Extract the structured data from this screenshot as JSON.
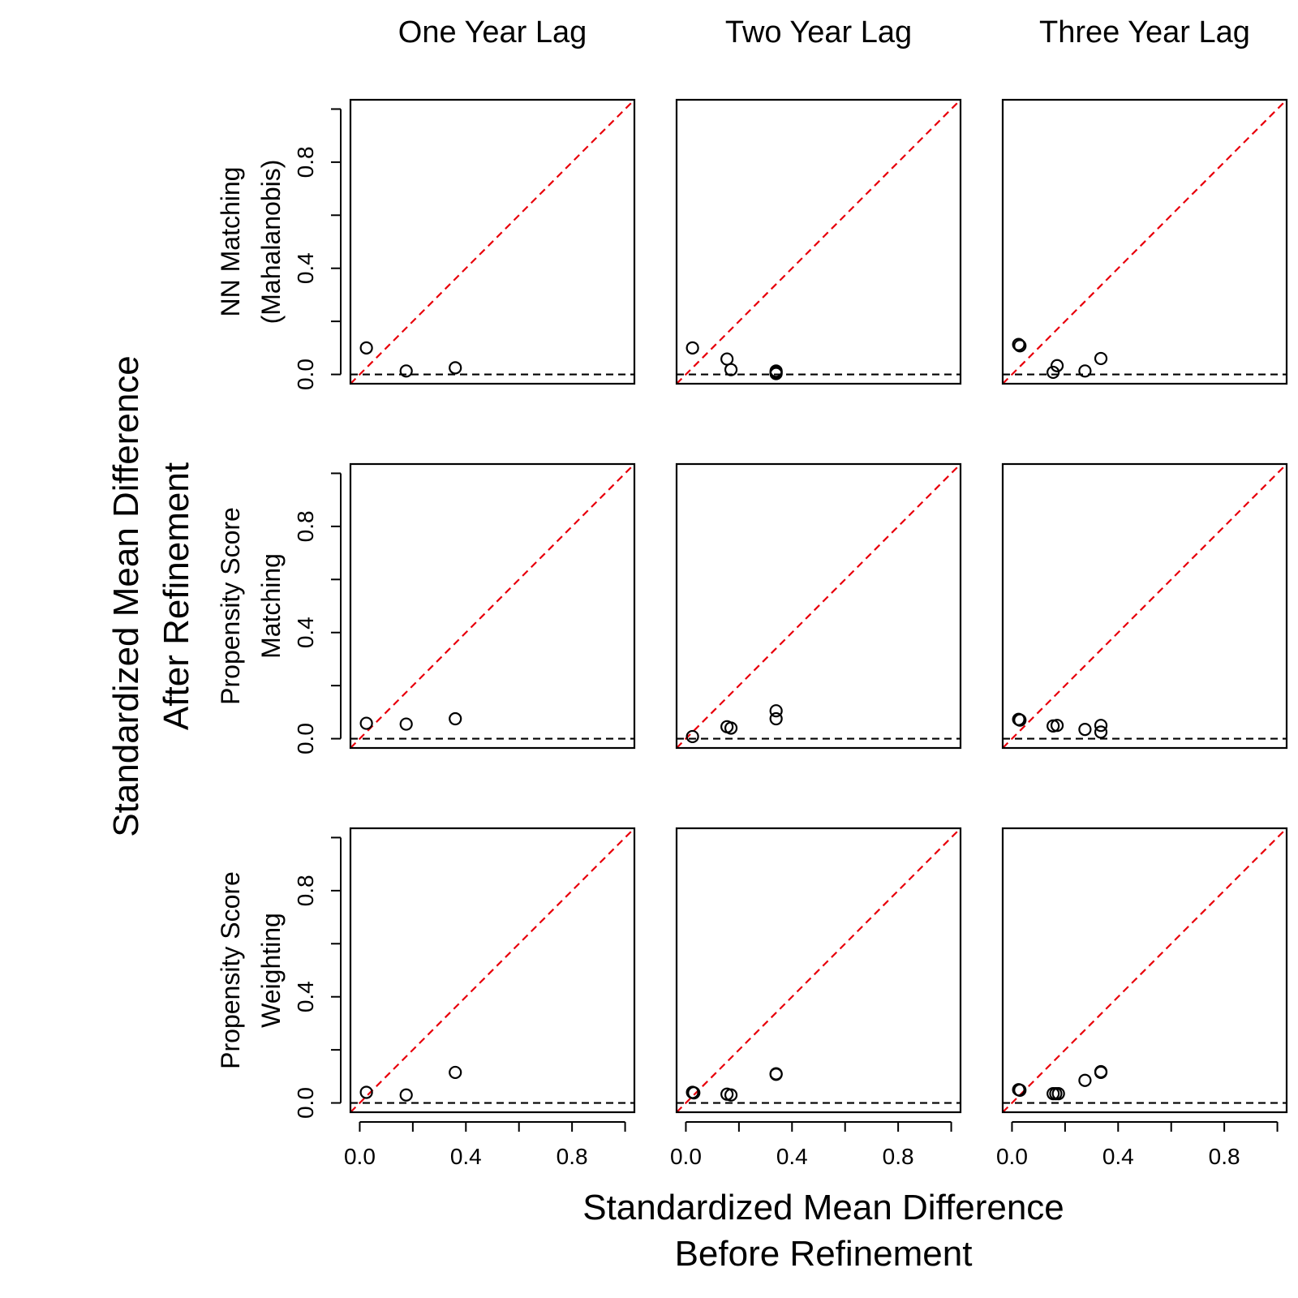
{
  "figure": {
    "xlabel_lines": [
      "Standardized Mean Difference",
      "Before Refinement"
    ],
    "ylabel_lines": [
      "Standardized Mean Difference",
      "After Refinement"
    ],
    "columns": [
      "One Year Lag",
      "Two Year Lag",
      "Three Year Lag"
    ],
    "rows": [
      [
        "NN Matching",
        "(Mahalanobis)"
      ],
      [
        "Propensity Score",
        "Matching"
      ],
      [
        "Propensity Score",
        "Weighting"
      ]
    ],
    "tick_values": [
      0.0,
      0.4,
      0.8
    ],
    "tick_labels": [
      "0.0",
      "0.4",
      "0.8"
    ],
    "minor_tick_values": [
      0.2,
      0.6,
      1.0
    ],
    "colors": {
      "identity_line": "#e8000b",
      "zero_line": "#000000",
      "points": "#000000"
    }
  },
  "chart_data": [
    {
      "type": "scatter",
      "row": 0,
      "col": 0,
      "xlim": [
        -0.035,
        1.035
      ],
      "ylim": [
        -0.035,
        1.035
      ],
      "x": [
        0.025,
        0.175,
        0.36
      ],
      "y": [
        0.1,
        0.013,
        0.025
      ]
    },
    {
      "type": "scatter",
      "row": 0,
      "col": 1,
      "xlim": [
        -0.035,
        1.035
      ],
      "ylim": [
        -0.035,
        1.035
      ],
      "x": [
        0.025,
        0.155,
        0.17,
        0.34,
        0.34,
        0.34
      ],
      "y": [
        0.1,
        0.058,
        0.018,
        0.013,
        0.008,
        0.003
      ]
    },
    {
      "type": "scatter",
      "row": 0,
      "col": 2,
      "xlim": [
        -0.035,
        1.035
      ],
      "ylim": [
        -0.035,
        1.035
      ],
      "x": [
        0.025,
        0.03,
        0.155,
        0.17,
        0.275,
        0.335
      ],
      "y": [
        0.113,
        0.108,
        0.008,
        0.033,
        0.013,
        0.06
      ]
    },
    {
      "type": "scatter",
      "row": 1,
      "col": 0,
      "xlim": [
        -0.035,
        1.035
      ],
      "ylim": [
        -0.035,
        1.035
      ],
      "x": [
        0.025,
        0.175,
        0.36
      ],
      "y": [
        0.058,
        0.055,
        0.075
      ]
    },
    {
      "type": "scatter",
      "row": 1,
      "col": 1,
      "xlim": [
        -0.035,
        1.035
      ],
      "ylim": [
        -0.035,
        1.035
      ],
      "x": [
        0.025,
        0.155,
        0.17,
        0.34,
        0.34
      ],
      "y": [
        0.008,
        0.045,
        0.04,
        0.105,
        0.075
      ]
    },
    {
      "type": "scatter",
      "row": 1,
      "col": 2,
      "xlim": [
        -0.035,
        1.035
      ],
      "ylim": [
        -0.035,
        1.035
      ],
      "x": [
        0.025,
        0.03,
        0.155,
        0.17,
        0.275,
        0.335,
        0.335
      ],
      "y": [
        0.073,
        0.07,
        0.048,
        0.05,
        0.035,
        0.05,
        0.025
      ]
    },
    {
      "type": "scatter",
      "row": 2,
      "col": 0,
      "xlim": [
        -0.035,
        1.035
      ],
      "ylim": [
        -0.035,
        1.035
      ],
      "x": [
        0.025,
        0.175,
        0.36
      ],
      "y": [
        0.04,
        0.03,
        0.115
      ]
    },
    {
      "type": "scatter",
      "row": 2,
      "col": 1,
      "xlim": [
        -0.035,
        1.035
      ],
      "ylim": [
        -0.035,
        1.035
      ],
      "x": [
        0.025,
        0.03,
        0.155,
        0.17,
        0.34,
        0.34
      ],
      "y": [
        0.04,
        0.038,
        0.033,
        0.03,
        0.11,
        0.108
      ]
    },
    {
      "type": "scatter",
      "row": 2,
      "col": 2,
      "xlim": [
        -0.035,
        1.035
      ],
      "ylim": [
        -0.035,
        1.035
      ],
      "x": [
        0.025,
        0.03,
        0.155,
        0.165,
        0.175,
        0.275,
        0.335,
        0.335
      ],
      "y": [
        0.05,
        0.048,
        0.035,
        0.035,
        0.035,
        0.085,
        0.118,
        0.115
      ]
    }
  ]
}
